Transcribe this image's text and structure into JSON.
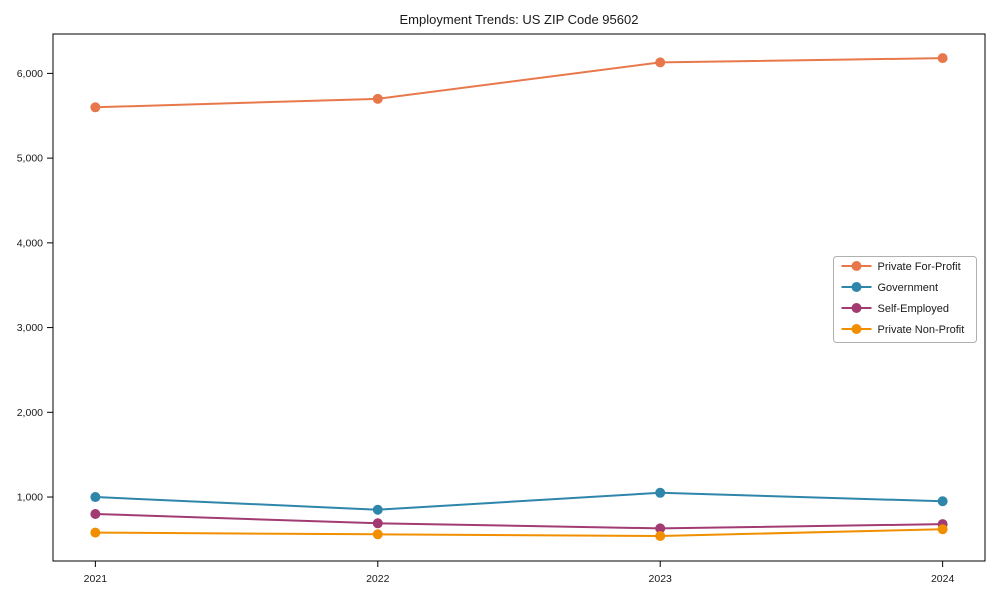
{
  "chart_data": {
    "type": "line",
    "title": "Employment Trends: US ZIP Code 95602",
    "x": [
      2021,
      2022,
      2023,
      2024
    ],
    "x_tick_labels": [
      "2021",
      "2022",
      "2023",
      "2024"
    ],
    "y_ticks": [
      1000,
      2000,
      3000,
      4000,
      5000,
      6000
    ],
    "y_tick_labels": [
      "1,000",
      "2,000",
      "3,000",
      "4,000",
      "5,000",
      "6,000"
    ],
    "ylim": [
      245,
      6465
    ],
    "grid": false,
    "legend_position": "center-right",
    "series": [
      {
        "name": "Private For-Profit",
        "color": "#E8784B",
        "values": [
          5600,
          5700,
          6130,
          6180
        ]
      },
      {
        "name": "Government",
        "color": "#2E86AB",
        "values": [
          1000,
          850,
          1050,
          950
        ]
      },
      {
        "name": "Self-Employed",
        "color": "#A23B72",
        "values": [
          800,
          690,
          630,
          680
        ]
      },
      {
        "name": "Private Non-Profit",
        "color": "#F18F01",
        "values": [
          580,
          560,
          540,
          620
        ]
      }
    ],
    "axis_color": "#000000",
    "legend_border_color": "#b0b0b0",
    "legend_background": "#ffffff"
  }
}
